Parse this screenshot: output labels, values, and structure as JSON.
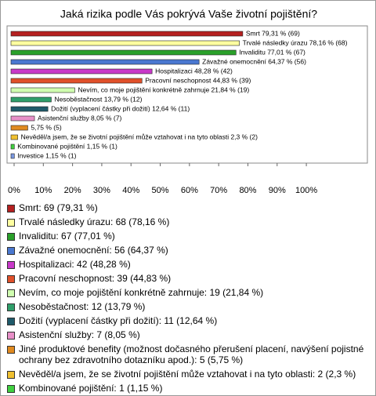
{
  "chart_data": {
    "type": "bar",
    "orientation": "horizontal",
    "title": "Jaká rizika podle Vás pokrývá Vaše životní pojištění?",
    "categories": [
      "Smrt: 69 (79,31 %)",
      "Trvalé následky úrazu: 68 (78,16 %)",
      "Invaliditu: 67 (77,01 %)",
      "Závažné onemocnění: 56 (64,37 %)",
      "Hospitalizaci: 42 (48,28 %)",
      "Pracovní neschopnost: 39 (44,83 %)",
      "Nevím, co moje pojištění konkrétně zahrnuje: 19 (21,84 %)",
      "Nesoběstačnost: 12 (13,79 %)",
      "Dožití (vyplacení částky při dožití): 11 (12,64 %)",
      "Asistenční služby: 7 (8,05 %)",
      "Jiné produktové benefity (možnost dočasného přerušení placení, navýšení pojistné ochrany bez zdravotního dotazníku apod.): 5 (5,75 %)",
      "Nevěděl/a jsem, že se životní pojištění může vztahovat i na tyto oblasti: 2 (2,3 %)",
      "Kombinované pojištění: 1 (1,15 %)",
      "Investice: 1 (1,15 %)"
    ],
    "values": [
      79.31,
      78.16,
      77.01,
      64.37,
      48.28,
      44.83,
      21.84,
      13.79,
      12.64,
      8.05,
      5.75,
      2.3,
      1.15,
      1.15
    ],
    "value_labels": [
      "Smrt 79,31 % (69)",
      "Trvalé následky úrazu 78,16 % (68)",
      "Invaliditu 77,01 % (67)",
      "Závažné onemocnění 64,37 % (56)",
      "Hospitalizaci 48,28 % (42)",
      "Pracovní neschopnost 44,83 % (39)",
      "Nevím, co moje pojištění konkrétně zahrnuje 21,84 % (19)",
      "Nesoběstačnost 13,79 % (12)",
      "Dožití (vyplacení částky při dožití) 12,64 % (11)",
      "Asistenční služby 8,05 % (7)",
      "5,75 % (5)",
      "Nevěděl/a jsem, že se životní pojištění může vztahovat i na tyto oblasti 2,3 % (2)",
      "Kombinované pojištění 1,15 % (1)",
      "Investice 1,15 % (1)"
    ],
    "colors": [
      "#b52020",
      "#ffffa0",
      "#2aa02a",
      "#4a78d0",
      "#c838c8",
      "#e0502a",
      "#d0ffb0",
      "#2f9f6a",
      "#1f5a6a",
      "#e890c8",
      "#e08a20",
      "#f0c030",
      "#40d040",
      "#7a98e0"
    ],
    "xlim": [
      0,
      104
    ],
    "xticks": [
      {
        "value": 0,
        "label": "0%"
      },
      {
        "value": 10,
        "label": "10%"
      },
      {
        "value": 20,
        "label": "20%"
      },
      {
        "value": 30,
        "label": "30%"
      },
      {
        "value": 40,
        "label": "40%"
      },
      {
        "value": 50,
        "label": "50%"
      },
      {
        "value": 60,
        "label": "60%"
      },
      {
        "value": 70,
        "label": "70%"
      },
      {
        "value": 80,
        "label": "80%"
      },
      {
        "value": 90,
        "label": "90%"
      },
      {
        "value": 100,
        "label": "100%"
      }
    ]
  }
}
